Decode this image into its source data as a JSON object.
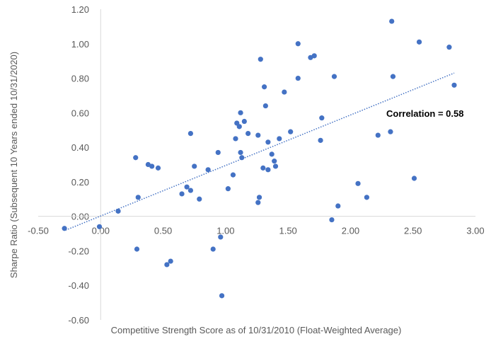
{
  "chart_data": {
    "type": "scatter",
    "title": "",
    "xlabel": "Competitive Strength Score as of 10/31/2010 (Float-Weighted Average)",
    "ylabel": "Sharpe Ratio (Subsequent 10 Years ended 10/31/2020)",
    "xlim": [
      -0.5,
      3.0
    ],
    "ylim": [
      -0.6,
      1.2
    ],
    "x_ticks": [
      -0.5,
      0.0,
      0.5,
      1.0,
      1.5,
      2.0,
      2.5,
      3.0
    ],
    "x_tick_labels": [
      "-0.50",
      "0.00",
      "0.50",
      "1.00",
      "1.50",
      "2.00",
      "2.50",
      "3.00"
    ],
    "y_ticks": [
      -0.6,
      -0.4,
      -0.2,
      0.0,
      0.2,
      0.4,
      0.6,
      0.8,
      1.0,
      1.2
    ],
    "y_tick_labels": [
      "-0.60",
      "-0.40",
      "-0.20",
      "0.00",
      "0.20",
      "0.40",
      "0.60",
      "0.80",
      "1.00",
      "1.20"
    ],
    "grid": false,
    "legend": "none",
    "annotation": "Correlation = 0.58",
    "marker_color": "#4472C4",
    "trendline": {
      "type": "linear",
      "style": "dotted",
      "color": "#4472C4",
      "x": [
        -0.28,
        2.83
      ],
      "y": [
        -0.08,
        0.83
      ]
    },
    "points": [
      {
        "x": -0.29,
        "y": -0.07
      },
      {
        "x": -0.01,
        "y": -0.06
      },
      {
        "x": 0.14,
        "y": 0.03
      },
      {
        "x": 0.28,
        "y": 0.34
      },
      {
        "x": 0.29,
        "y": -0.19
      },
      {
        "x": 0.3,
        "y": 0.11
      },
      {
        "x": 0.38,
        "y": 0.3
      },
      {
        "x": 0.41,
        "y": 0.29
      },
      {
        "x": 0.46,
        "y": 0.28
      },
      {
        "x": 0.53,
        "y": -0.28
      },
      {
        "x": 0.56,
        "y": -0.26
      },
      {
        "x": 0.65,
        "y": 0.13
      },
      {
        "x": 0.69,
        "y": 0.17
      },
      {
        "x": 0.72,
        "y": 0.15
      },
      {
        "x": 0.72,
        "y": 0.48
      },
      {
        "x": 0.75,
        "y": 0.29
      },
      {
        "x": 0.79,
        "y": 0.1
      },
      {
        "x": 0.86,
        "y": 0.27
      },
      {
        "x": 0.9,
        "y": -0.19
      },
      {
        "x": 0.94,
        "y": 0.37
      },
      {
        "x": 0.96,
        "y": -0.12
      },
      {
        "x": 0.97,
        "y": -0.46
      },
      {
        "x": 1.02,
        "y": 0.16
      },
      {
        "x": 1.06,
        "y": 0.24
      },
      {
        "x": 1.08,
        "y": 0.45
      },
      {
        "x": 1.09,
        "y": 0.54
      },
      {
        "x": 1.11,
        "y": 0.52
      },
      {
        "x": 1.12,
        "y": 0.37
      },
      {
        "x": 1.12,
        "y": 0.6
      },
      {
        "x": 1.13,
        "y": 0.34
      },
      {
        "x": 1.15,
        "y": 0.55
      },
      {
        "x": 1.18,
        "y": 0.48
      },
      {
        "x": 1.26,
        "y": 0.08
      },
      {
        "x": 1.26,
        "y": 0.47
      },
      {
        "x": 1.27,
        "y": 0.11
      },
      {
        "x": 1.28,
        "y": 0.91
      },
      {
        "x": 1.3,
        "y": 0.28
      },
      {
        "x": 1.31,
        "y": 0.75
      },
      {
        "x": 1.32,
        "y": 0.64
      },
      {
        "x": 1.34,
        "y": 0.43
      },
      {
        "x": 1.34,
        "y": 0.27
      },
      {
        "x": 1.37,
        "y": 0.36
      },
      {
        "x": 1.39,
        "y": 0.32
      },
      {
        "x": 1.4,
        "y": 0.29
      },
      {
        "x": 1.43,
        "y": 0.45
      },
      {
        "x": 1.47,
        "y": 0.72
      },
      {
        "x": 1.52,
        "y": 0.49
      },
      {
        "x": 1.58,
        "y": 1.0
      },
      {
        "x": 1.58,
        "y": 0.8
      },
      {
        "x": 1.68,
        "y": 0.92
      },
      {
        "x": 1.71,
        "y": 0.93
      },
      {
        "x": 1.76,
        "y": 0.44
      },
      {
        "x": 1.77,
        "y": 0.57
      },
      {
        "x": 1.85,
        "y": -0.02
      },
      {
        "x": 1.87,
        "y": 0.81
      },
      {
        "x": 1.9,
        "y": 0.06
      },
      {
        "x": 2.06,
        "y": 0.19
      },
      {
        "x": 2.13,
        "y": 0.11
      },
      {
        "x": 2.22,
        "y": 0.47
      },
      {
        "x": 2.32,
        "y": 0.49
      },
      {
        "x": 2.33,
        "y": 1.13
      },
      {
        "x": 2.34,
        "y": 0.81
      },
      {
        "x": 2.51,
        "y": 0.22
      },
      {
        "x": 2.55,
        "y": 1.01
      },
      {
        "x": 2.79,
        "y": 0.98
      },
      {
        "x": 2.83,
        "y": 0.76
      }
    ]
  }
}
